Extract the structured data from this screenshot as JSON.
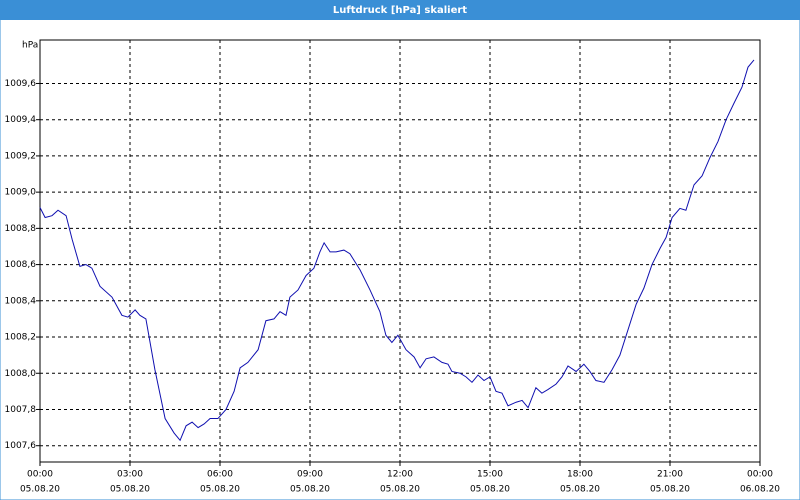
{
  "chart_data": {
    "type": "line",
    "title": "Luftdruck [hPa] skaliert",
    "y_label": "hPa",
    "series": [
      {
        "name": "Luftdruck",
        "color": "#1010b0",
        "x": [
          0,
          0.17,
          0.4,
          0.6,
          0.87,
          1.07,
          1.33,
          1.53,
          1.73,
          2.0,
          2.4,
          2.73,
          2.93,
          3.17,
          3.33,
          3.53,
          3.83,
          4.17,
          4.47,
          4.67,
          4.87,
          5.07,
          5.27,
          5.47,
          5.67,
          5.93,
          6.2,
          6.47,
          6.67,
          6.93,
          7.27,
          7.53,
          7.8,
          8.0,
          8.2,
          8.33,
          8.6,
          8.87,
          9.13,
          9.33,
          9.47,
          9.67,
          9.87,
          10.13,
          10.33,
          10.67,
          11.0,
          11.33,
          11.53,
          11.73,
          11.93,
          12.2,
          12.47,
          12.67,
          12.87,
          13.13,
          13.4,
          13.6,
          13.73,
          14.0,
          14.2,
          14.4,
          14.6,
          14.8,
          15.0,
          15.2,
          15.4,
          15.6,
          15.87,
          16.07,
          16.27,
          16.53,
          16.73,
          16.93,
          17.2,
          17.4,
          17.6,
          17.87,
          18.13,
          18.33,
          18.53,
          18.8,
          19.07,
          19.33,
          19.6,
          19.87,
          20.13,
          20.4,
          20.67,
          20.87,
          21.07,
          21.33,
          21.53,
          21.8,
          22.07,
          22.33,
          22.6,
          22.87,
          23.13,
          23.4,
          23.6,
          23.8
        ],
        "values": [
          1008.915,
          1008.86,
          1008.87,
          1008.9,
          1008.87,
          1008.74,
          1008.59,
          1008.6,
          1008.58,
          1008.48,
          1008.42,
          1008.32,
          1008.31,
          1008.35,
          1008.32,
          1008.3,
          1008.02,
          1007.75,
          1007.67,
          1007.63,
          1007.71,
          1007.73,
          1007.7,
          1007.72,
          1007.75,
          1007.75,
          1007.8,
          1007.9,
          1008.03,
          1008.06,
          1008.13,
          1008.29,
          1008.3,
          1008.34,
          1008.32,
          1008.42,
          1008.46,
          1008.54,
          1008.58,
          1008.67,
          1008.72,
          1008.67,
          1008.67,
          1008.68,
          1008.66,
          1008.57,
          1008.46,
          1008.34,
          1008.21,
          1008.17,
          1008.21,
          1008.13,
          1008.09,
          1008.03,
          1008.08,
          1008.09,
          1008.06,
          1008.05,
          1008.01,
          1008.0,
          1007.98,
          1007.95,
          1007.99,
          1007.96,
          1007.98,
          1007.9,
          1007.89,
          1007.82,
          1007.84,
          1007.85,
          1007.81,
          1007.92,
          1007.89,
          1007.91,
          1007.94,
          1007.98,
          1008.04,
          1008.01,
          1008.05,
          1008.01,
          1007.96,
          1007.95,
          1008.02,
          1008.1,
          1008.24,
          1008.38,
          1008.47,
          1008.6,
          1008.69,
          1008.75,
          1008.86,
          1008.91,
          1008.9,
          1009.04,
          1009.09,
          1009.19,
          1009.28,
          1009.4,
          1009.49,
          1009.58,
          1009.69,
          1009.73
        ]
      }
    ],
    "xlim": [
      0,
      24
    ],
    "xticks": [
      {
        "value": 0,
        "label": "00:00"
      },
      {
        "value": 3,
        "label": "03:00"
      },
      {
        "value": 6,
        "label": "06:00"
      },
      {
        "value": 9,
        "label": "09:00"
      },
      {
        "value": 12,
        "label": "12:00"
      },
      {
        "value": 15,
        "label": "15:00"
      },
      {
        "value": 18,
        "label": "18:00"
      },
      {
        "value": 21,
        "label": "21:00"
      },
      {
        "value": 24,
        "label": "00:00"
      }
    ],
    "xtick_dates": [
      "05.08.20",
      "05.08.20",
      "05.08.20",
      "05.08.20",
      "05.08.20",
      "05.08.20",
      "05.08.20",
      "05.08.20",
      "06.08.20"
    ],
    "ylim": [
      1007.51,
      1009.84
    ],
    "yticks": [
      {
        "value": 1007.6,
        "label": "1007,6"
      },
      {
        "value": 1007.8,
        "label": "1007,8"
      },
      {
        "value": 1008.0,
        "label": "1008,0"
      },
      {
        "value": 1008.2,
        "label": "1008,2"
      },
      {
        "value": 1008.4,
        "label": "1008,4"
      },
      {
        "value": 1008.6,
        "label": "1008,6"
      },
      {
        "value": 1008.8,
        "label": "1008,8"
      },
      {
        "value": 1009.0,
        "label": "1009,0"
      },
      {
        "value": 1009.2,
        "label": "1009,2"
      },
      {
        "value": 1009.4,
        "label": "1009,4"
      },
      {
        "value": 1009.6,
        "label": "1009,6"
      }
    ],
    "grid": true
  }
}
